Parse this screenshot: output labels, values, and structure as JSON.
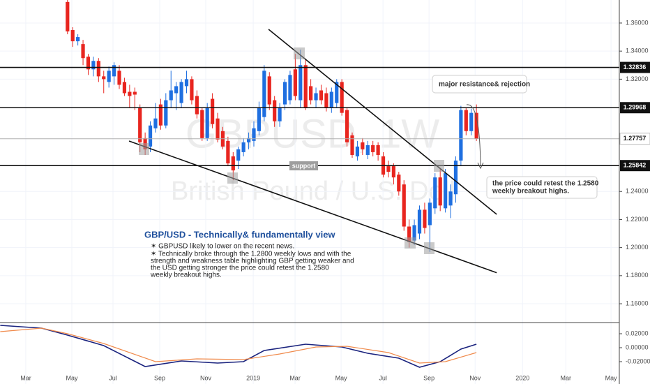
{
  "chart_data": [
    {
      "type": "candlestick",
      "watermark": "GBPUSD, 1W",
      "watermark_subtitle": "British Pound / U.S. Doll",
      "x": [
        9,
        10,
        11,
        12,
        13,
        14,
        15,
        16,
        17,
        18,
        19,
        20,
        21,
        22,
        23,
        24,
        25,
        26,
        27,
        28,
        29,
        30,
        31,
        32,
        33,
        34,
        35,
        36,
        37,
        38,
        39,
        40,
        41,
        42,
        43,
        44,
        45,
        46,
        47,
        48,
        49,
        50,
        51,
        52,
        53,
        54,
        55,
        56,
        57,
        58,
        59,
        60,
        61,
        62,
        63,
        64,
        65,
        66,
        67,
        68,
        69,
        70,
        71,
        72,
        73,
        74,
        75,
        76,
        77,
        78,
        79,
        80,
        81,
        82,
        83,
        84,
        85,
        86,
        87,
        88
      ],
      "open": [
        1.375,
        1.355,
        1.347,
        1.345,
        1.336,
        1.327,
        1.333,
        1.322,
        1.318,
        1.322,
        1.326,
        1.318,
        1.311,
        1.311,
        1.3,
        1.278,
        1.272,
        1.285,
        1.302,
        1.287,
        1.305,
        1.31,
        1.303,
        1.315,
        1.32,
        1.308,
        1.298,
        1.278,
        1.306,
        1.292,
        1.283,
        1.276,
        1.265,
        1.262,
        1.268,
        1.275,
        1.276,
        1.283,
        1.293,
        1.322,
        1.305,
        1.29,
        1.302,
        1.305,
        1.327,
        1.305,
        1.33,
        1.315,
        1.305,
        1.312,
        1.31,
        1.3,
        1.303,
        1.318,
        1.298,
        1.28,
        1.265,
        1.275,
        1.266,
        1.273,
        1.273,
        1.265,
        1.258,
        1.258,
        1.252,
        1.245,
        1.215,
        1.205,
        1.21,
        1.227,
        1.216,
        1.228,
        1.25,
        1.228,
        1.23,
        1.238,
        1.262,
        1.298,
        1.283,
        1.296
      ],
      "high": [
        1.378,
        1.357,
        1.352,
        1.348,
        1.338,
        1.336,
        1.335,
        1.326,
        1.329,
        1.332,
        1.33,
        1.321,
        1.316,
        1.314,
        1.302,
        1.282,
        1.29,
        1.303,
        1.306,
        1.31,
        1.326,
        1.318,
        1.32,
        1.326,
        1.322,
        1.312,
        1.3,
        1.303,
        1.31,
        1.296,
        1.286,
        1.279,
        1.268,
        1.272,
        1.278,
        1.282,
        1.29,
        1.304,
        1.33,
        1.325,
        1.308,
        1.303,
        1.32,
        1.326,
        1.338,
        1.341,
        1.334,
        1.32,
        1.314,
        1.316,
        1.314,
        1.314,
        1.32,
        1.32,
        1.3,
        1.282,
        1.276,
        1.278,
        1.276,
        1.276,
        1.275,
        1.268,
        1.262,
        1.26,
        1.254,
        1.248,
        1.22,
        1.22,
        1.23,
        1.232,
        1.235,
        1.253,
        1.256,
        1.256,
        1.245,
        1.265,
        1.301,
        1.3,
        1.299,
        1.302
      ],
      "low": [
        1.352,
        1.343,
        1.344,
        1.33,
        1.323,
        1.322,
        1.318,
        1.31,
        1.314,
        1.316,
        1.313,
        1.308,
        1.3,
        1.298,
        1.268,
        1.266,
        1.268,
        1.282,
        1.284,
        1.285,
        1.3,
        1.298,
        1.3,
        1.31,
        1.302,
        1.292,
        1.276,
        1.276,
        1.285,
        1.275,
        1.27,
        1.258,
        1.248,
        1.256,
        1.265,
        1.27,
        1.272,
        1.28,
        1.29,
        1.298,
        1.286,
        1.286,
        1.298,
        1.302,
        1.305,
        1.3,
        1.298,
        1.302,
        1.3,
        1.302,
        1.297,
        1.296,
        1.3,
        1.294,
        1.272,
        1.264,
        1.262,
        1.266,
        1.263,
        1.265,
        1.262,
        1.25,
        1.25,
        1.245,
        1.237,
        1.212,
        1.2,
        1.202,
        1.206,
        1.21,
        1.197,
        1.224,
        1.226,
        1.225,
        1.221,
        1.232,
        1.258,
        1.28,
        1.28,
        1.276
      ],
      "close": [
        1.354,
        1.347,
        1.35,
        1.335,
        1.327,
        1.333,
        1.322,
        1.32,
        1.326,
        1.33,
        1.316,
        1.31,
        1.308,
        1.309,
        1.275,
        1.27,
        1.287,
        1.292,
        1.287,
        1.305,
        1.312,
        1.315,
        1.318,
        1.32,
        1.305,
        1.295,
        1.278,
        1.3,
        1.288,
        1.277,
        1.272,
        1.26,
        1.255,
        1.27,
        1.275,
        1.278,
        1.285,
        1.3,
        1.326,
        1.302,
        1.29,
        1.3,
        1.318,
        1.323,
        1.308,
        1.33,
        1.3,
        1.305,
        1.31,
        1.305,
        1.3,
        1.311,
        1.318,
        1.296,
        1.275,
        1.266,
        1.272,
        1.27,
        1.273,
        1.268,
        1.266,
        1.252,
        1.254,
        1.25,
        1.24,
        1.215,
        1.204,
        1.216,
        1.227,
        1.214,
        1.232,
        1.25,
        1.23,
        1.253,
        1.24,
        1.262,
        1.298,
        1.283,
        1.296,
        1.2776
      ],
      "up_color": "#1f6fe0",
      "down_color": "#e8251f",
      "xlim": [
        -4.04,
        115.6
      ],
      "xticks": [
        {
          "value": 0.94,
          "label": "Mar"
        },
        {
          "value": 9.84,
          "label": "May"
        },
        {
          "value": 17.79,
          "label": "Jul"
        },
        {
          "value": 26.82,
          "label": "Sep"
        },
        {
          "value": 35.71,
          "label": "Nov"
        },
        {
          "value": 44.88,
          "label": "2019"
        },
        {
          "value": 52.96,
          "label": "Mar"
        },
        {
          "value": 61.86,
          "label": "May"
        },
        {
          "value": 69.95,
          "label": "Jul"
        },
        {
          "value": 78.84,
          "label": "Sep"
        },
        {
          "value": 87.74,
          "label": "Nov"
        },
        {
          "value": 96.9,
          "label": "2020"
        },
        {
          "value": 105.26,
          "label": "Mar"
        },
        {
          "value": 114.0,
          "label": "May"
        }
      ],
      "ylim": [
        1.1466,
        1.3764
      ],
      "yticks": [
        {
          "value": 1.16,
          "label": "1.16000"
        },
        {
          "value": 1.18,
          "label": "1.18000"
        },
        {
          "value": 1.2,
          "label": "1.20000"
        },
        {
          "value": 1.22,
          "label": "1.22000"
        },
        {
          "value": 1.24,
          "label": "1.24000"
        },
        {
          "value": 1.32,
          "label": "1.32000"
        },
        {
          "value": 1.34,
          "label": "1.34000"
        },
        {
          "value": 1.36,
          "label": "1.36000"
        }
      ],
      "grid": true,
      "levels": [
        1.32836,
        1.29968,
        1.25842
      ],
      "last_price": 1.27757,
      "trendlines": [
        {
          "x": [
            47.84,
            91.91
          ],
          "y": [
            1.3555,
            1.2237
          ]
        },
        {
          "x": [
            20.89,
            91.91
          ],
          "y": [
            1.27592,
            1.18209
          ]
        }
      ],
      "annotations": {
        "support": "support",
        "resistance": "major resistance& rejection",
        "retest": [
          "the price could retest the 1.2580",
          "weekly breakout highs."
        ]
      },
      "note": {
        "title": "GBP/USD - Technically& fundamentally view",
        "lines": [
          "✶ GBPUSD likely to lower on the recent news.",
          "✶ Technically broke through the 1.2800 weekly lows and with the",
          "strength and weakness table highlighting GBP getting weaker and",
          "the USD getting stronger the price could retest the 1.2580",
          "weekly breakout highs."
        ]
      }
    },
    {
      "type": "line",
      "xlim": [
        -4.04,
        115.6
      ],
      "ylim": [
        -0.052,
        0.036
      ],
      "yticks": [
        {
          "value": 0.02,
          "label": "0.02000"
        },
        {
          "value": 0,
          "label": "0.00000"
        },
        {
          "value": -0.02,
          "label": "-0.02000"
        }
      ],
      "series": [
        {
          "color": "#1a237e",
          "x": [
            -4,
            4,
            9,
            16,
            24,
            31,
            38,
            43,
            47,
            55,
            62,
            67,
            73,
            77,
            81,
            85,
            88
          ],
          "values": [
            0.032,
            0.028,
            0.018,
            0.003,
            -0.027,
            -0.019,
            -0.022,
            -0.02,
            -0.004,
            0.005,
            0.001,
            -0.008,
            -0.015,
            -0.028,
            -0.02,
            -0.002,
            0.005
          ]
        },
        {
          "color": "#f08a4b",
          "x": [
            -4,
            4,
            9,
            16,
            26,
            34,
            43,
            50,
            57,
            63,
            71,
            77,
            82,
            88
          ],
          "values": [
            0.023,
            0.028,
            0.02,
            0.006,
            -0.02,
            -0.016,
            -0.017,
            -0.009,
            0.001,
            0.002,
            -0.007,
            -0.022,
            -0.02,
            -0.007
          ]
        }
      ]
    }
  ]
}
